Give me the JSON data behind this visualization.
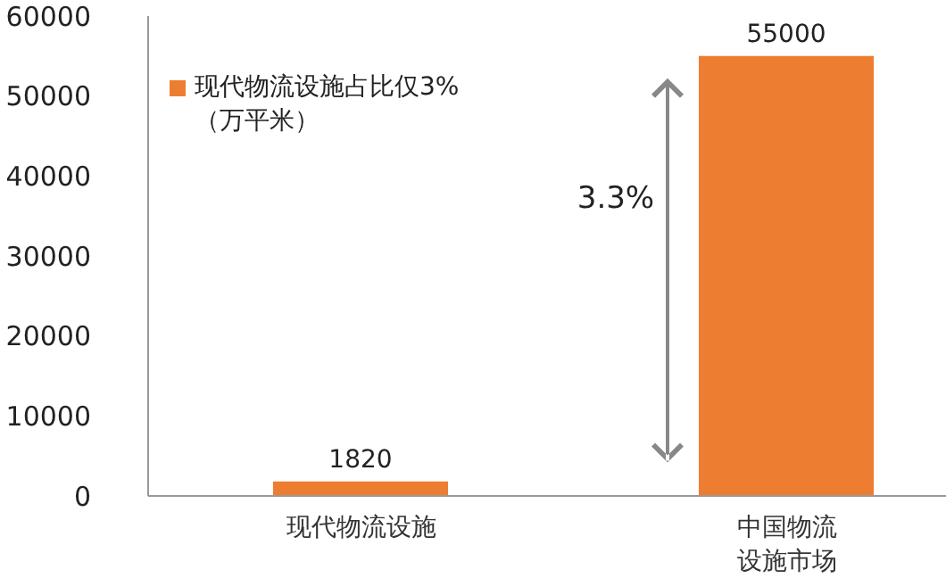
{
  "chart_data": {
    "type": "bar",
    "categories": [
      "现代物流设施",
      "中国物流设施市场"
    ],
    "series": [
      {
        "name": "现代物流设施占比仅3%（万平米）",
        "color": "#ed7d31",
        "values": [
          1820,
          55000
        ]
      }
    ],
    "ylim": [
      0,
      60000
    ],
    "yticks": [
      0,
      10000,
      20000,
      30000,
      40000,
      50000,
      60000
    ],
    "grid": false,
    "legend": "top left",
    "data_labels": true,
    "annotations": [
      "3.3%"
    ]
  }
}
